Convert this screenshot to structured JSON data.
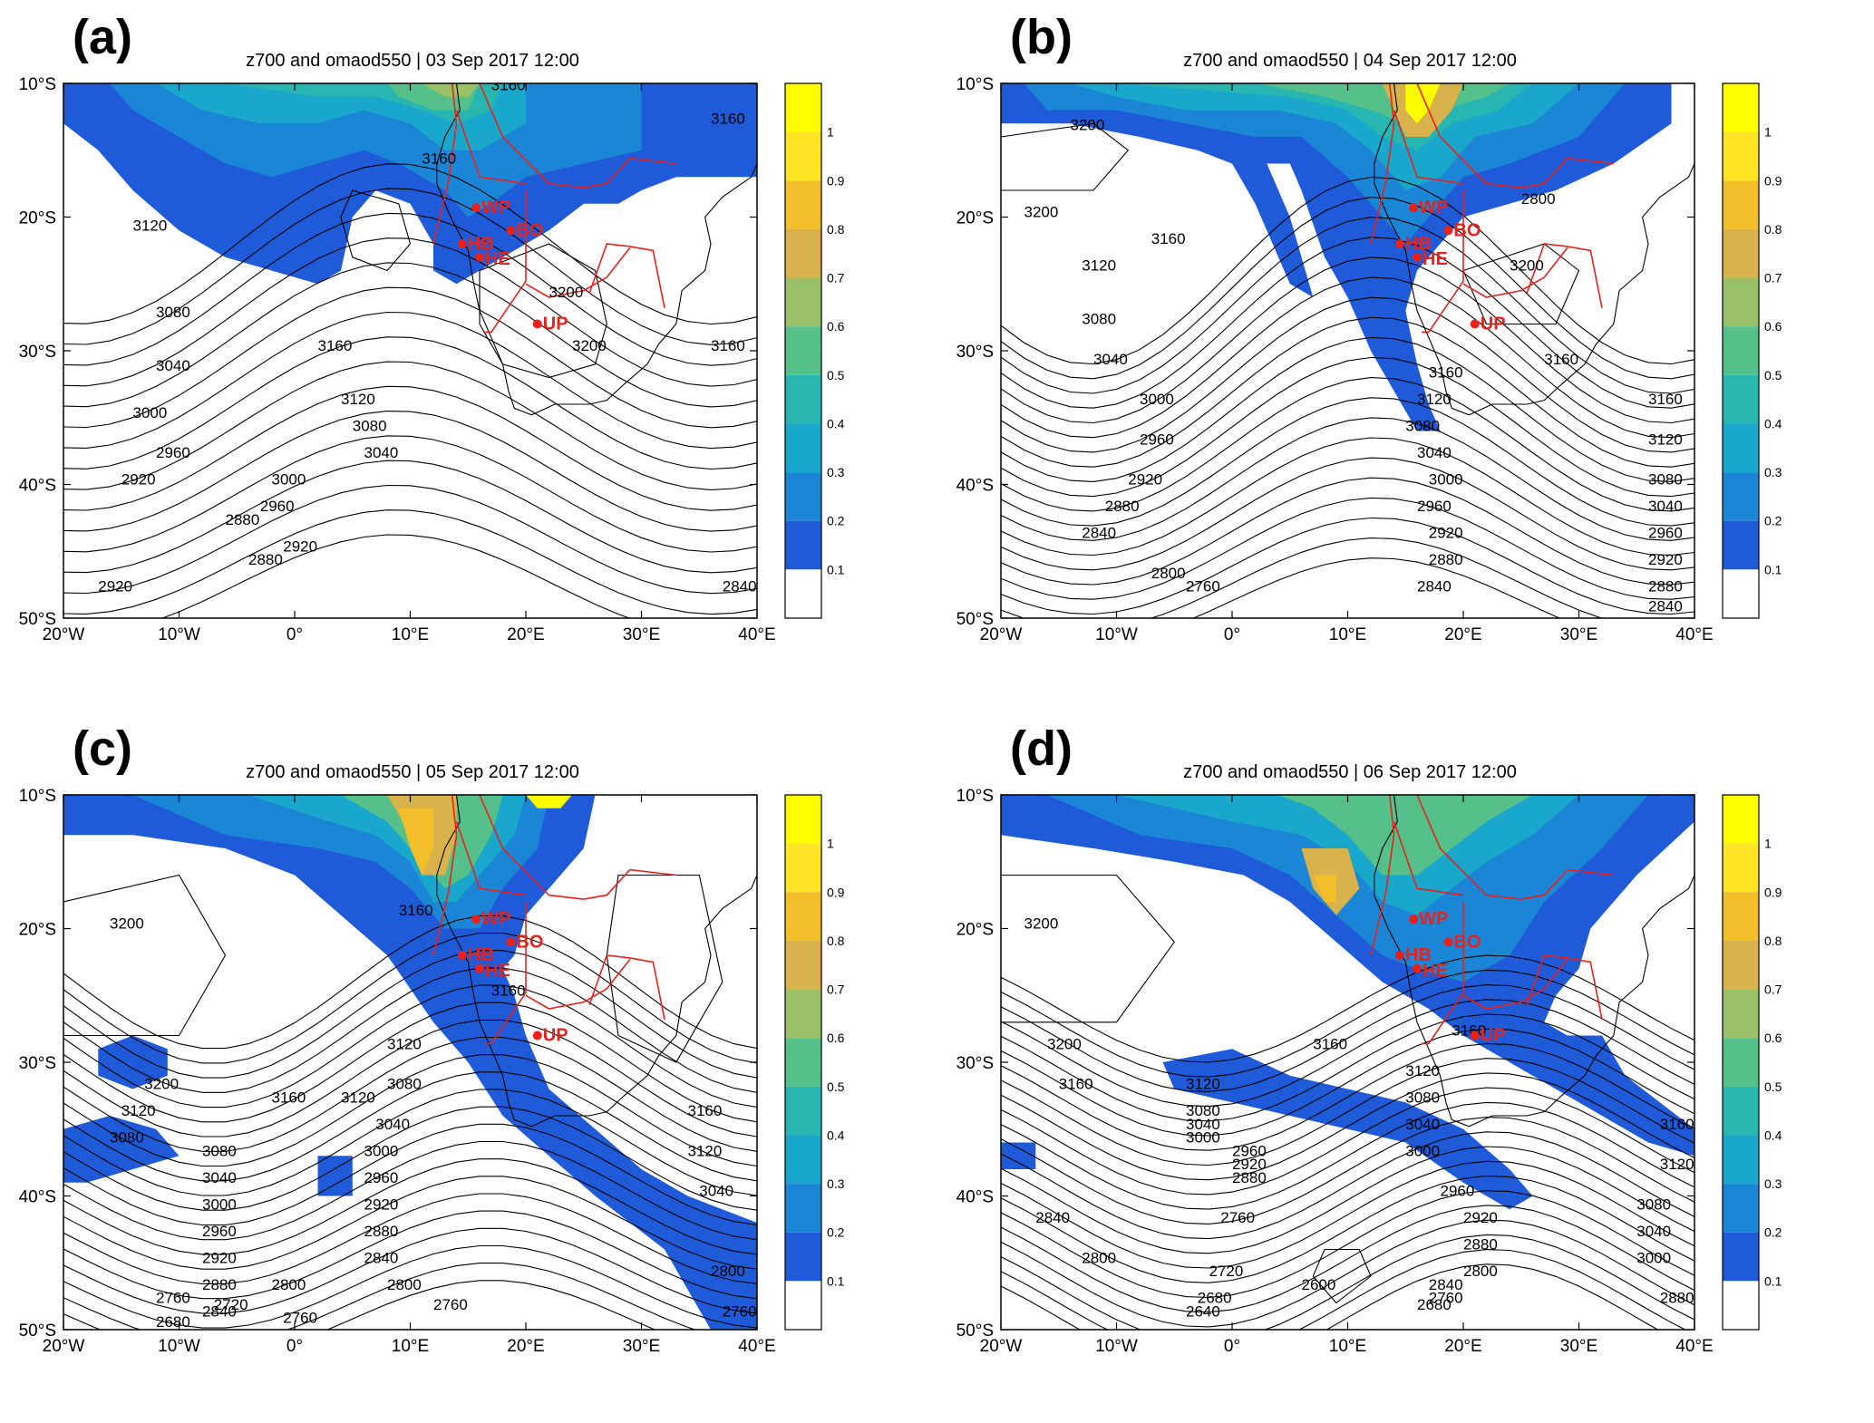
{
  "panels": [
    {
      "id": "a",
      "letter": "(a)",
      "title": "z700 and omaod550 | 03 Sep 2017 12:00",
      "contour_labels": [
        "3160",
        "3160",
        "3160",
        "3120",
        "3080",
        "3040",
        "3000",
        "2960",
        "2920",
        "2880",
        "2920",
        "3200",
        "3160",
        "3120",
        "3080",
        "3040",
        "3000",
        "2960",
        "2920",
        "2880",
        "2840",
        "3200",
        "3160"
      ]
    },
    {
      "id": "b",
      "letter": "(b)",
      "title": "z700 and omaod550 | 04 Sep 2017 12:00",
      "contour_labels": [
        "3200",
        "3200",
        "3160",
        "3160",
        "3120",
        "3080",
        "3040",
        "3000",
        "2960",
        "2920",
        "2880",
        "2840",
        "2800",
        "2760",
        "3160",
        "3120",
        "3080",
        "3040",
        "3000",
        "2960",
        "2920",
        "2880",
        "2840",
        "2800",
        "3200",
        "3160",
        "3120",
        "3080",
        "3040",
        "2960",
        "2920",
        "2880",
        "2840"
      ]
    },
    {
      "id": "c",
      "letter": "(c)",
      "title": "z700 and omaod550 | 05 Sep 2017 12:00",
      "contour_labels": [
        "3200",
        "3160",
        "3200",
        "3160",
        "3120",
        "3080",
        "3120",
        "3080",
        "3040",
        "3000",
        "2960",
        "2920",
        "2880",
        "2840",
        "2800",
        "2760",
        "2720",
        "2680",
        "2760",
        "3160",
        "3120",
        "3080",
        "3040",
        "3000",
        "2960",
        "2920",
        "2880",
        "2840",
        "2800",
        "2760",
        "3160",
        "3120",
        "3040",
        "2800",
        "2760"
      ]
    },
    {
      "id": "d",
      "letter": "(d)",
      "title": "z700 and omaod550 | 06 Sep 2017 12:00",
      "contour_labels": [
        "3200",
        "3200",
        "3160",
        "3160",
        "3120",
        "3080",
        "3040",
        "3000",
        "2960",
        "2920",
        "2880",
        "2840",
        "2800",
        "2760",
        "2720",
        "2680",
        "2640",
        "2600",
        "3160",
        "3120",
        "3080",
        "3040",
        "3000",
        "2960",
        "2920",
        "2880",
        "2840",
        "2800",
        "2760",
        "2680",
        "3160",
        "3120",
        "3080",
        "3040",
        "3000",
        "2880"
      ]
    }
  ],
  "sites": [
    {
      "code": "WP",
      "lon": 15.7,
      "lat": -19.3
    },
    {
      "code": "BO",
      "lon": 18.7,
      "lat": -21.0
    },
    {
      "code": "HB",
      "lon": 14.5,
      "lat": -22.0
    },
    {
      "code": "HE",
      "lon": 16.0,
      "lat": -23.0
    },
    {
      "code": "UP",
      "lon": 21.0,
      "lat": -28.0
    }
  ],
  "axes": {
    "lat_ticks": [
      "10°S",
      "20°S",
      "30°S",
      "40°S",
      "50°S"
    ],
    "lon_ticks": [
      "20°W",
      "10°W",
      "0°",
      "10°E",
      "20°E",
      "30°E",
      "40°E"
    ],
    "lon_range": [
      -20,
      40
    ],
    "lat_range": [
      -50,
      -10
    ]
  },
  "colorbar": {
    "variable": "omaod550",
    "ticks": [
      "0.1",
      "0.2",
      "0.3",
      "0.4",
      "0.5",
      "0.6",
      "0.7",
      "0.8",
      "0.9",
      "1"
    ],
    "colors": [
      "#ffffff",
      "#1f5bd8",
      "#1b86d6",
      "#1aa7cc",
      "#27b7b0",
      "#55c08a",
      "#9ac068",
      "#d8b24a",
      "#f2be2a",
      "#ffe426",
      "#fdfd00"
    ]
  },
  "colors": {
    "border": "#e8211a",
    "contour": "#000000",
    "site": "#e8211a"
  }
}
